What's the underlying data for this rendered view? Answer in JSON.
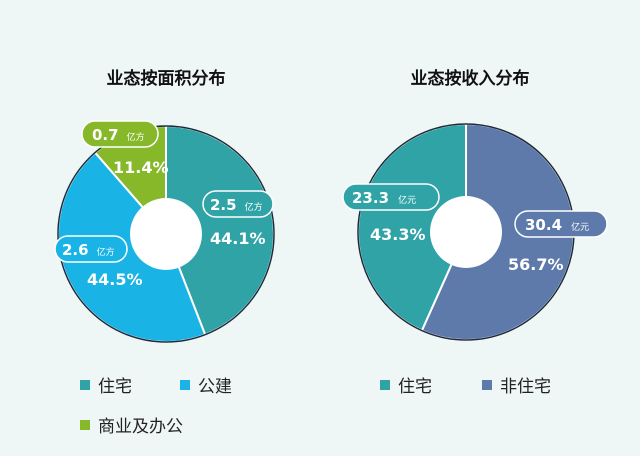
{
  "colors": {
    "teal": "#2fa3a6",
    "cyan": "#19b3e6",
    "green": "#86b82a",
    "navy": "#5e7aab",
    "outline": "#1d2b3a"
  },
  "chart_data": [
    {
      "type": "pie",
      "title": "业态按面积分布",
      "unit": "亿方",
      "slices": [
        {
          "label": "住宅",
          "value": 2.5,
          "percent": "44.1%",
          "color": "#2fa3a6"
        },
        {
          "label": "公建",
          "value": 2.6,
          "percent": "44.5%",
          "color": "#19b3e6"
        },
        {
          "label": "商业及办公",
          "value": 0.7,
          "percent": "11.4%",
          "color": "#86b82a"
        }
      ]
    },
    {
      "type": "pie",
      "title": "业态按收入分布",
      "unit": "亿元",
      "slices": [
        {
          "label": "非住宅",
          "value": 30.4,
          "percent": "56.7%",
          "color": "#5e7aab"
        },
        {
          "label": "住宅",
          "value": 23.3,
          "percent": "43.3%",
          "color": "#2fa3a6"
        }
      ]
    }
  ]
}
